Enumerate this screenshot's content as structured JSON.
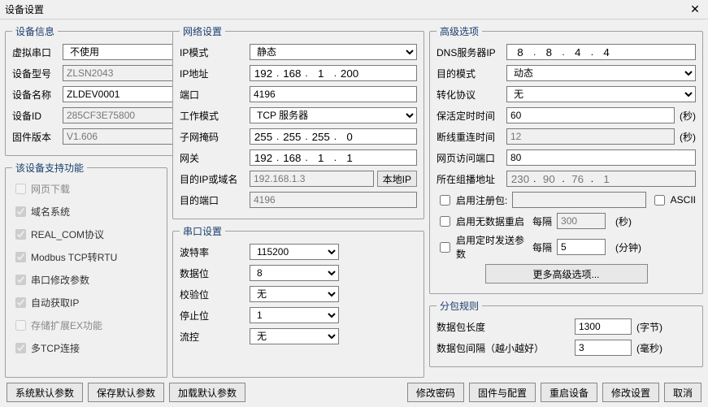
{
  "window": {
    "title": "设备设置"
  },
  "device_info": {
    "legend": "设备信息",
    "virtual_port_label": "虚拟串口",
    "virtual_port_value": "不使用",
    "model_label": "设备型号",
    "model_value": "ZLSN2043",
    "name_label": "设备名称",
    "name_value": "ZLDEV0001",
    "id_label": "设备ID",
    "id_value": "285CF3E75800",
    "id_btn": "[-]",
    "fw_label": "固件版本",
    "fw_value": "V1.606"
  },
  "features": {
    "legend": "该设备支持功能",
    "items": [
      {
        "label": "网页下载",
        "checked": false
      },
      {
        "label": "域名系统",
        "checked": true
      },
      {
        "label": "REAL_COM协议",
        "checked": true
      },
      {
        "label": "Modbus TCP转RTU",
        "checked": true
      },
      {
        "label": "串口修改参数",
        "checked": true
      },
      {
        "label": "自动获取IP",
        "checked": true
      },
      {
        "label": "存储扩展EX功能",
        "checked": false
      },
      {
        "label": "多TCP连接",
        "checked": true
      }
    ]
  },
  "network": {
    "legend": "网络设置",
    "ip_mode_label": "IP模式",
    "ip_mode_value": "静态",
    "ip_label": "IP地址",
    "ip": [
      "192",
      "168",
      "1",
      "200"
    ],
    "port_label": "端口",
    "port_value": "4196",
    "work_mode_label": "工作模式",
    "work_mode_value": "TCP 服务器",
    "mask_label": "子网掩码",
    "mask": [
      "255",
      "255",
      "255",
      "0"
    ],
    "gw_label": "网关",
    "gw": [
      "192",
      "168",
      "1",
      "1"
    ],
    "dest_ip_label": "目的IP或域名",
    "dest_ip_value": "192.168.1.3",
    "local_ip_btn": "本地IP",
    "dest_port_label": "目的端口",
    "dest_port_value": "4196"
  },
  "serial": {
    "legend": "串口设置",
    "baud_label": "波特率",
    "baud_value": "115200",
    "databit_label": "数据位",
    "databit_value": "8",
    "parity_label": "校验位",
    "parity_value": "无",
    "stopbit_label": "停止位",
    "stopbit_value": "1",
    "flow_label": "流控",
    "flow_value": "无"
  },
  "advanced": {
    "legend": "高级选项",
    "dns_label": "DNS服务器IP",
    "dns": [
      "8",
      "8",
      "4",
      "4"
    ],
    "dest_mode_label": "目的模式",
    "dest_mode_value": "动态",
    "proto_label": "转化协议",
    "proto_value": "无",
    "keepalive_label": "保活定时时间",
    "keepalive_value": "60",
    "sec_unit": "(秒)",
    "reconnect_label": "断线重连时间",
    "reconnect_value": "12",
    "web_port_label": "网页访问端口",
    "web_port_value": "80",
    "mcast_label": "所在组播地址",
    "mcast": [
      "230",
      "90",
      "76",
      "1"
    ],
    "reg_pkt_label": "启用注册包:",
    "ascii_label": "ASCII",
    "nodata_label": "启用无数据重启",
    "interval_label": "每隔",
    "nodata_value": "300",
    "timed_send_label": "启用定时发送参数",
    "timed_send_value": "5",
    "min_unit": "(分钟)",
    "more_btn": "更多高级选项..."
  },
  "packet": {
    "legend": "分包规则",
    "len_label": "数据包长度",
    "len_value": "1300",
    "byte_unit": "(字节)",
    "gap_label": "数据包间隔（越小越好）",
    "gap_value": "3",
    "ms_unit": "(毫秒)"
  },
  "buttons": {
    "sys_default": "系统默认参数",
    "save_default": "保存默认参数",
    "load_default": "加载默认参数",
    "change_pwd": "修改密码",
    "fw_config": "固件与配置",
    "reboot": "重启设备",
    "apply": "修改设置",
    "cancel": "取消"
  },
  "colors": {
    "bg": "#f0f0f0",
    "border": "#a0a0a0",
    "legend": "#1a3e6e"
  }
}
